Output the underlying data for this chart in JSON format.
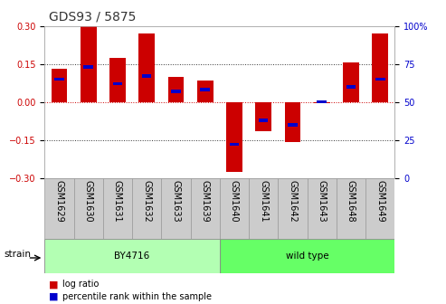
{
  "title": "GDS93 / 5875",
  "samples": [
    "GSM1629",
    "GSM1630",
    "GSM1631",
    "GSM1632",
    "GSM1633",
    "GSM1639",
    "GSM1640",
    "GSM1641",
    "GSM1642",
    "GSM1643",
    "GSM1648",
    "GSM1649"
  ],
  "log_ratios": [
    0.13,
    0.3,
    0.175,
    0.27,
    0.1,
    0.085,
    -0.275,
    -0.115,
    -0.16,
    -0.005,
    0.155,
    0.27
  ],
  "percentile_ranks": [
    65,
    73,
    62,
    67,
    57,
    58,
    22,
    38,
    35,
    50,
    60,
    65
  ],
  "groups": [
    "BY4716",
    "BY4716",
    "BY4716",
    "BY4716",
    "BY4716",
    "BY4716",
    "wild type",
    "wild type",
    "wild type",
    "wild type",
    "wild type",
    "wild type"
  ],
  "group_colors": {
    "BY4716": "#b3ffb3",
    "wild type": "#66ff66"
  },
  "bar_color": "#cc0000",
  "dot_color": "#0000cc",
  "ylim": [
    -0.3,
    0.3
  ],
  "yticks_left": [
    -0.3,
    -0.15,
    0.0,
    0.15,
    0.3
  ],
  "yticks_right": [
    0,
    25,
    50,
    75,
    100
  ],
  "hlines": [
    0.15,
    0.0,
    -0.15
  ],
  "background_color": "#ffffff",
  "bar_width": 0.55,
  "title_fontsize": 10,
  "tick_fontsize": 7,
  "label_fontsize": 7.5,
  "legend_fontsize": 7,
  "xtick_bg": "#cccccc",
  "xtick_border": "#999999",
  "dot_size": 0.013
}
